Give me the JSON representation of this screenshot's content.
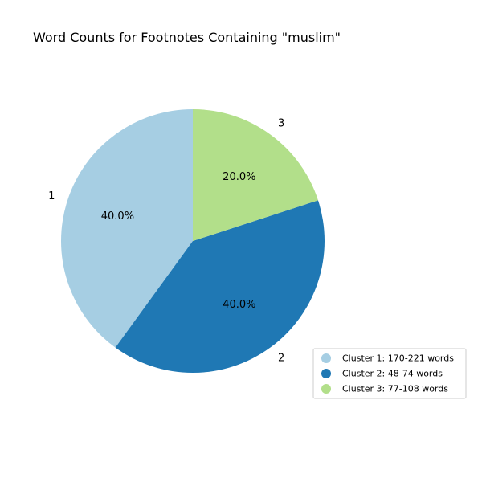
{
  "chart_data": {
    "type": "pie",
    "title": "Word Counts for Footnotes Containing \"muslim\"",
    "labels": [
      "1",
      "2",
      "3"
    ],
    "values": [
      40.0,
      40.0,
      20.0
    ],
    "percent_labels": [
      "40.0%",
      "40.0%",
      "20.0%"
    ],
    "colors": [
      "#a6cee3",
      "#1f78b4",
      "#b2df8a"
    ],
    "start_angle_deg": 90,
    "direction": "counterclockwise",
    "legend": {
      "placement": "lower-right",
      "entries": [
        "Cluster 1: 170-221 words",
        "Cluster 2: 48-74 words",
        "Cluster 3: 77-108 words"
      ]
    }
  }
}
